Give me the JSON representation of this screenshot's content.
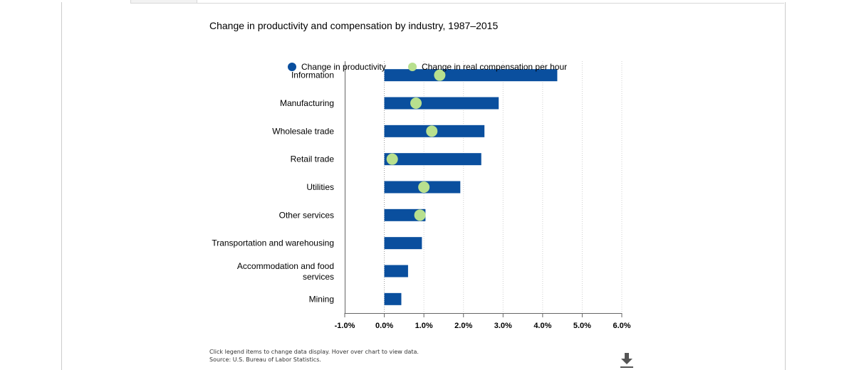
{
  "chart_data": {
    "type": "bar",
    "title": "Change in productivity and compensation by industry, 1987–2015",
    "categories": [
      "Information",
      "Manufacturing",
      "Wholesale trade",
      "Retail trade",
      "Utilities",
      "Other services",
      "Transportation and warehousing",
      "Accommodation and food services",
      "Mining"
    ],
    "series": [
      {
        "name": "Change in productivity",
        "marker": "bar",
        "color": "#0a4f9e",
        "values": [
          4.37,
          2.89,
          2.53,
          2.45,
          1.92,
          1.04,
          0.95,
          0.6,
          0.43
        ]
      },
      {
        "name": "Change in real compensation per hour",
        "marker": "dot",
        "color": "#b8e08e",
        "values": [
          1.4,
          0.8,
          1.2,
          0.2,
          1.0,
          0.9,
          null,
          null,
          null
        ]
      }
    ],
    "orientation": "horizontal",
    "xlim": [
      -1,
      6
    ],
    "xticks": [
      "-1.0%",
      "0.0%",
      "1.0%",
      "2.0%",
      "3.0%",
      "4.0%",
      "5.0%",
      "6.0%"
    ],
    "grid": true,
    "legend_position": "top"
  },
  "footer": {
    "note_line1": "Click legend items to change data display. Hover over chart to view data.",
    "note_line2": "Source: U.S. Bureau of Labor Statistics."
  },
  "icons": {
    "download": "download-icon"
  }
}
